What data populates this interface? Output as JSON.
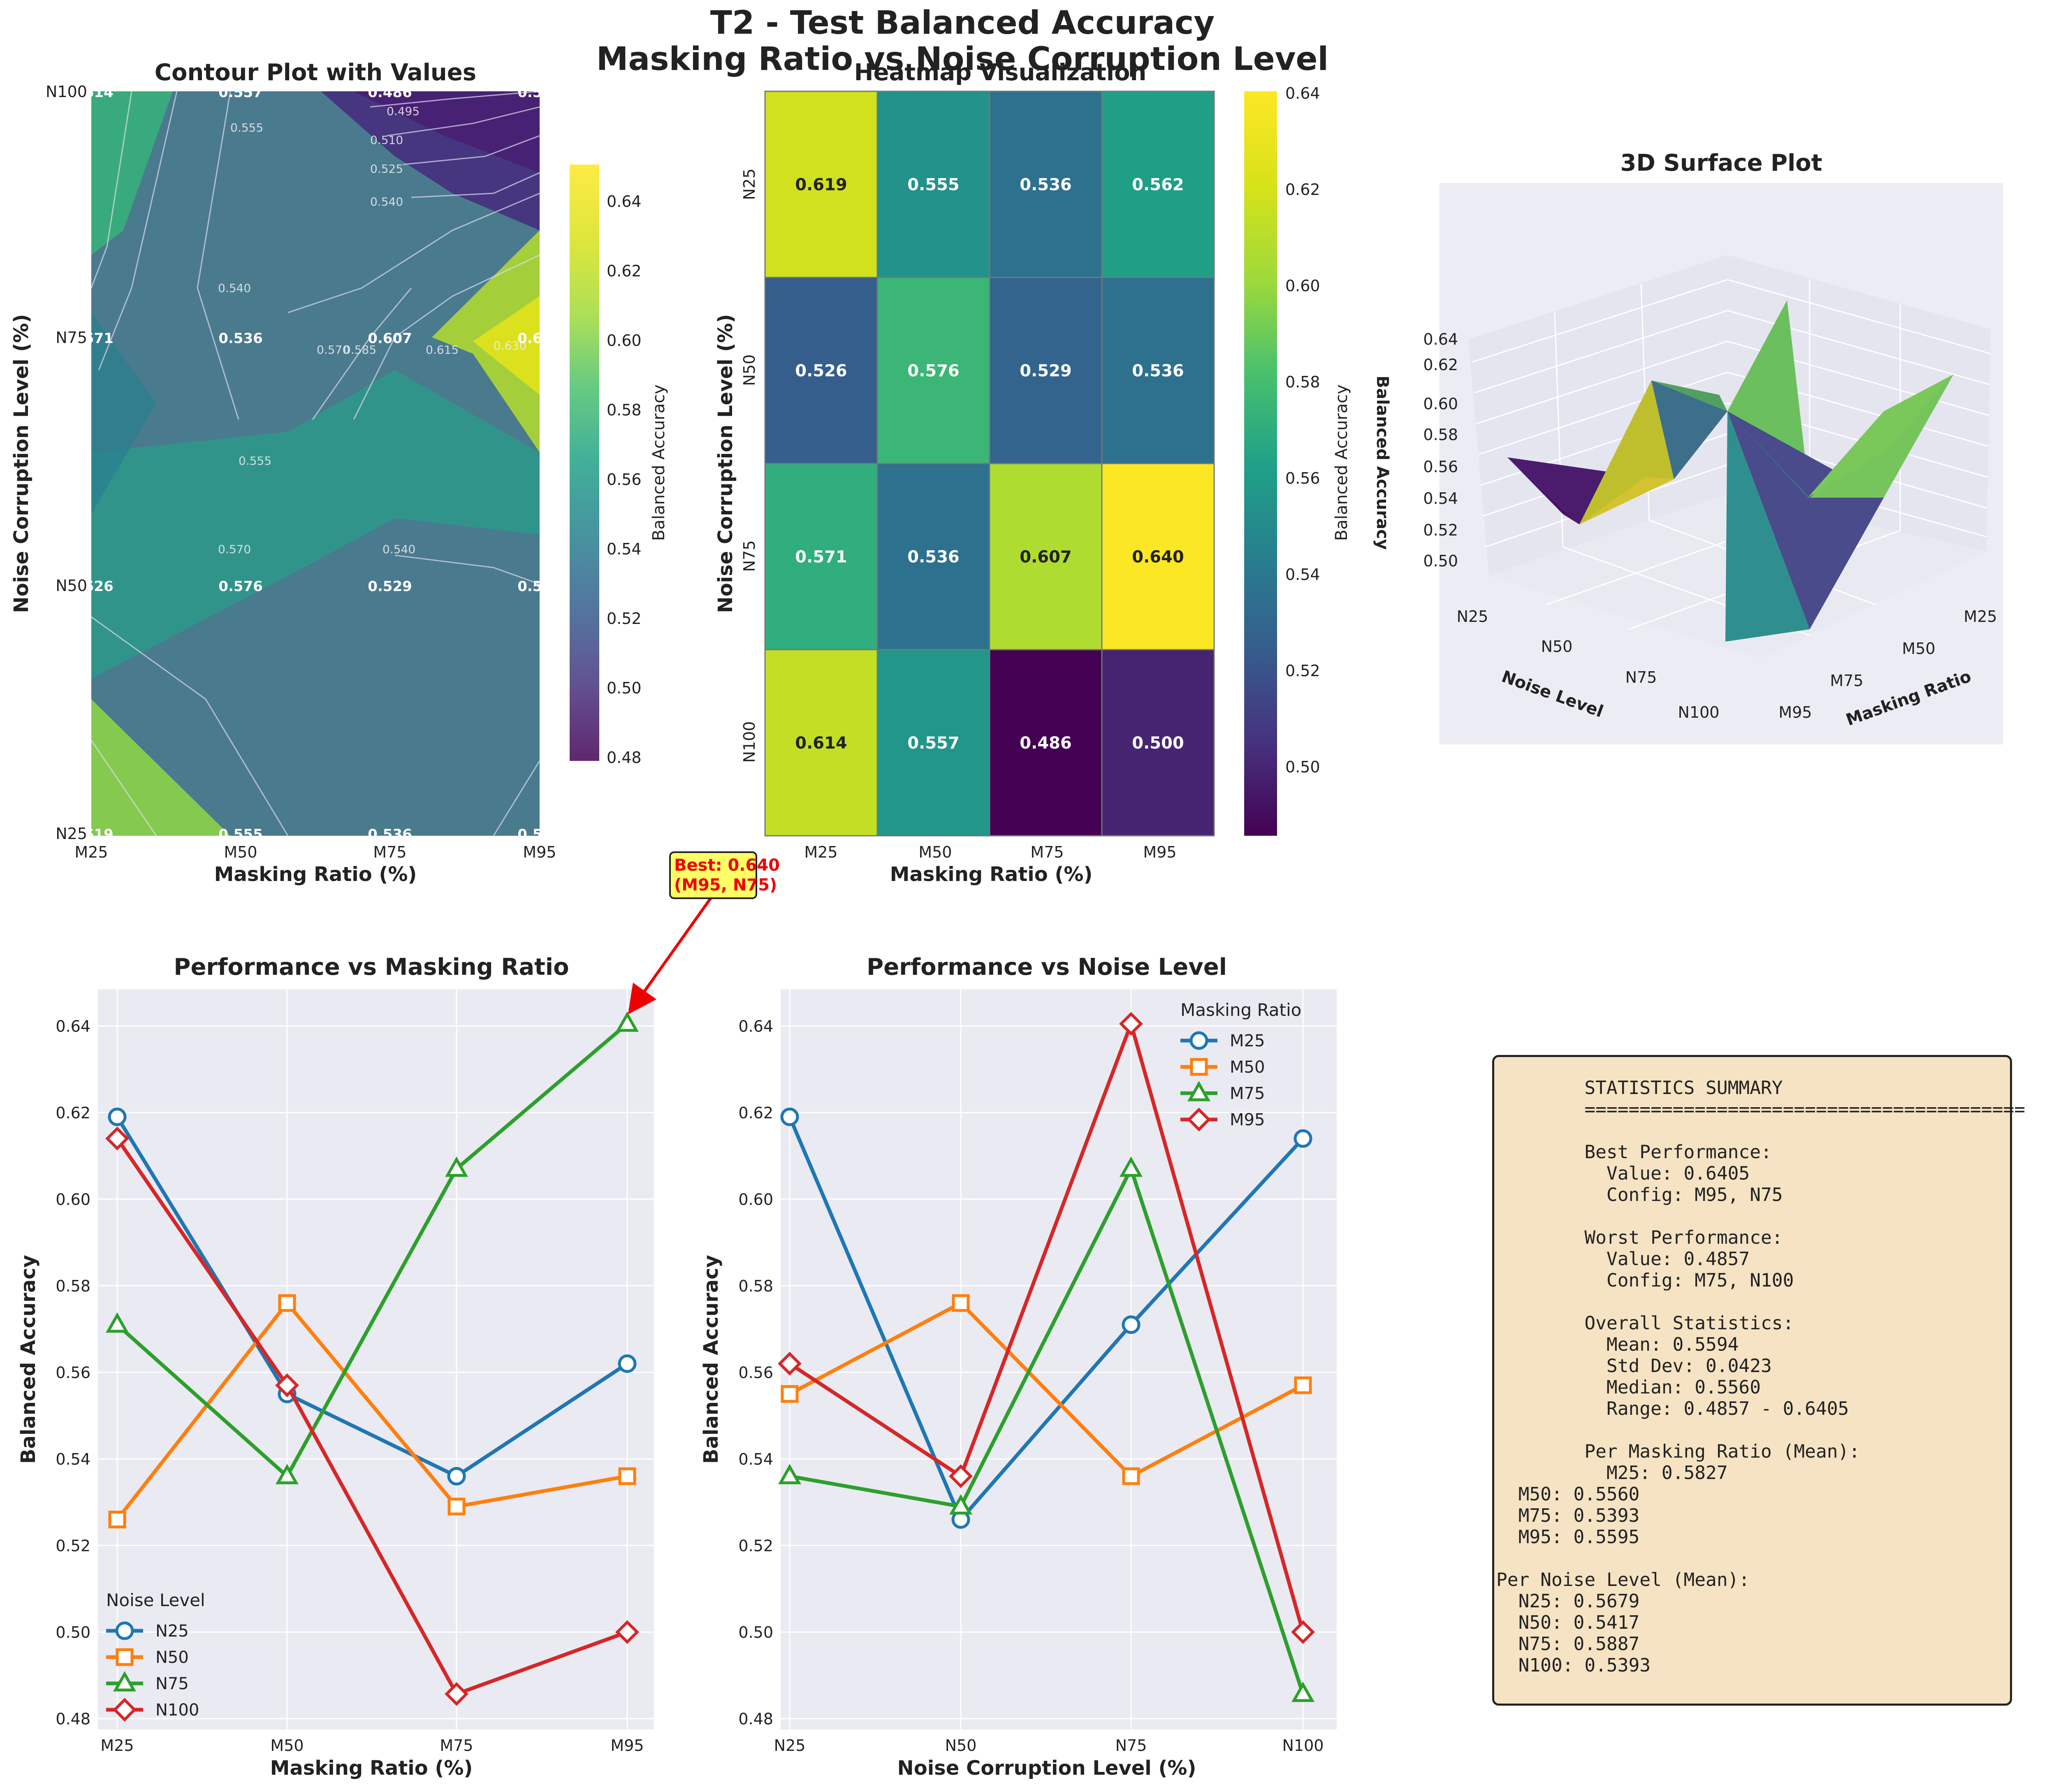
{
  "suptitle": [
    "T2 - Test Balanced Accuracy",
    "Masking Ratio vs Noise Corruption Level"
  ],
  "masking_labels": [
    "M25",
    "M50",
    "M75",
    "M95"
  ],
  "noise_labels": [
    "N25",
    "N50",
    "N75",
    "N100"
  ],
  "colors": {
    "N25": "#1f77b4",
    "N50": "#ff7f0e",
    "N75": "#2ca02c",
    "N100": "#d62728"
  },
  "chart_data": [
    {
      "type": "heatmap",
      "title": "Contour Plot with Values",
      "xlabel": "Masking Ratio (%)",
      "ylabel": "Noise Corruption Level (%)",
      "colorbar_label": "Balanced Accuracy",
      "colorbar_ticks": [
        "0.64",
        "0.62",
        "0.60",
        "0.58",
        "0.56",
        "0.54",
        "0.52",
        "0.50",
        "0.48"
      ],
      "x_ticks": [
        "M25",
        "M50",
        "M75",
        "M95"
      ],
      "y_ticks": [
        "N100",
        "N75",
        "N50",
        "N25"
      ],
      "contour_labels": [
        "0.495",
        "0.510",
        "0.525",
        "0.540",
        "0.555",
        "0.570",
        "0.585",
        "0.600",
        "0.615",
        "0.630"
      ],
      "colormap": "viridis"
    },
    {
      "type": "heatmap",
      "title": "Heatmap Visualization",
      "xlabel": "Masking Ratio (%)",
      "ylabel": "Noise Corruption Level (%)",
      "colorbar_label": "Balanced Accuracy",
      "x": [
        "M25",
        "M50",
        "M75",
        "M95"
      ],
      "y": [
        "N25",
        "N50",
        "N75",
        "N100"
      ],
      "values": [
        [
          0.619,
          0.555,
          0.536,
          0.562
        ],
        [
          0.526,
          0.576,
          0.529,
          0.536
        ],
        [
          0.571,
          0.536,
          0.607,
          0.64
        ],
        [
          0.614,
          0.557,
          0.486,
          0.5
        ]
      ],
      "value_labels": [
        [
          "0.619",
          "0.555",
          "0.536",
          "0.562"
        ],
        [
          "0.526",
          "0.576",
          "0.529",
          "0.536"
        ],
        [
          "0.571",
          "0.536",
          "0.607",
          "0.640"
        ],
        [
          "0.614",
          "0.557",
          "0.486",
          "0.500"
        ]
      ],
      "colorbar_ticks": [
        "0.64",
        "0.62",
        "0.60",
        "0.58",
        "0.56",
        "0.54",
        "0.52",
        "0.50"
      ],
      "range": [
        0.486,
        0.6405
      ],
      "colormap": "viridis"
    },
    {
      "type": "area",
      "title": "3D Surface Plot",
      "xlabel": "Noise Level",
      "ylabel": "Masking Ratio",
      "z_ticks": [
        "0.64",
        "0.62",
        "0.60",
        "0.58",
        "0.56",
        "0.54",
        "0.52",
        "0.50"
      ],
      "noise_ticks": [
        "N25",
        "N50",
        "N75",
        "N100"
      ],
      "mask_ticks": [
        "M25",
        "M50",
        "M75",
        "M95"
      ]
    },
    {
      "type": "line",
      "title": "Performance vs Masking Ratio",
      "xlabel": "Masking Ratio (%)",
      "ylabel": "Balanced Accuracy",
      "categories": [
        "M25",
        "M50",
        "M75",
        "M95"
      ],
      "y_ticks": [
        "0.64",
        "0.62",
        "0.60",
        "0.58",
        "0.56",
        "0.54",
        "0.52",
        "0.50",
        "0.48"
      ],
      "ylim": [
        0.4775,
        0.6485
      ],
      "legend_title": "Noise Level",
      "legend_position": "lower-left",
      "series": [
        {
          "name": "N25",
          "marker": "circle",
          "values": [
            0.619,
            0.555,
            0.536,
            0.562
          ]
        },
        {
          "name": "N50",
          "marker": "square",
          "values": [
            0.526,
            0.576,
            0.529,
            0.536
          ]
        },
        {
          "name": "N75",
          "marker": "triangle",
          "values": [
            0.571,
            0.536,
            0.607,
            0.6405
          ]
        },
        {
          "name": "N100",
          "marker": "diamond",
          "values": [
            0.614,
            0.557,
            0.4857,
            0.5
          ]
        }
      ],
      "annotation": [
        "Best: 0.640",
        "(M95, N75)"
      ]
    },
    {
      "type": "line",
      "title": "Performance vs Noise Level",
      "xlabel": "Noise Corruption Level (%)",
      "ylabel": "Balanced Accuracy",
      "categories": [
        "N25",
        "N50",
        "N75",
        "N100"
      ],
      "y_ticks": [
        "0.64",
        "0.62",
        "0.60",
        "0.58",
        "0.56",
        "0.54",
        "0.52",
        "0.50",
        "0.48"
      ],
      "ylim": [
        0.4775,
        0.6485
      ],
      "legend_title": "Masking Ratio",
      "legend_position": "top-right",
      "series": [
        {
          "name": "M25",
          "marker": "circle",
          "values": [
            0.619,
            0.526,
            0.571,
            0.614
          ]
        },
        {
          "name": "M50",
          "marker": "square",
          "values": [
            0.555,
            0.576,
            0.536,
            0.557
          ]
        },
        {
          "name": "M75",
          "marker": "triangle",
          "values": [
            0.536,
            0.529,
            0.607,
            0.4857
          ]
        },
        {
          "name": "M95",
          "marker": "diamond",
          "values": [
            0.562,
            0.536,
            0.6405,
            0.5
          ]
        }
      ]
    }
  ],
  "stats_summary": "        STATISTICS SUMMARY\n        ========================================\n\n        Best Performance:\n          Value: 0.6405\n          Config: M95, N75\n\n        Worst Performance:\n          Value: 0.4857\n          Config: M75, N100\n\n        Overall Statistics:\n          Mean: 0.5594\n          Std Dev: 0.0423\n          Median: 0.5560\n          Range: 0.4857 - 0.6405\n\n        Per Masking Ratio (Mean):\n          M25: 0.5827\n  M50: 0.5560\n  M75: 0.5393\n  M95: 0.5595\n\nPer Noise Level (Mean):\n  N25: 0.5679\n  N50: 0.5417\n  N75: 0.5887\n  N100: 0.5393"
}
